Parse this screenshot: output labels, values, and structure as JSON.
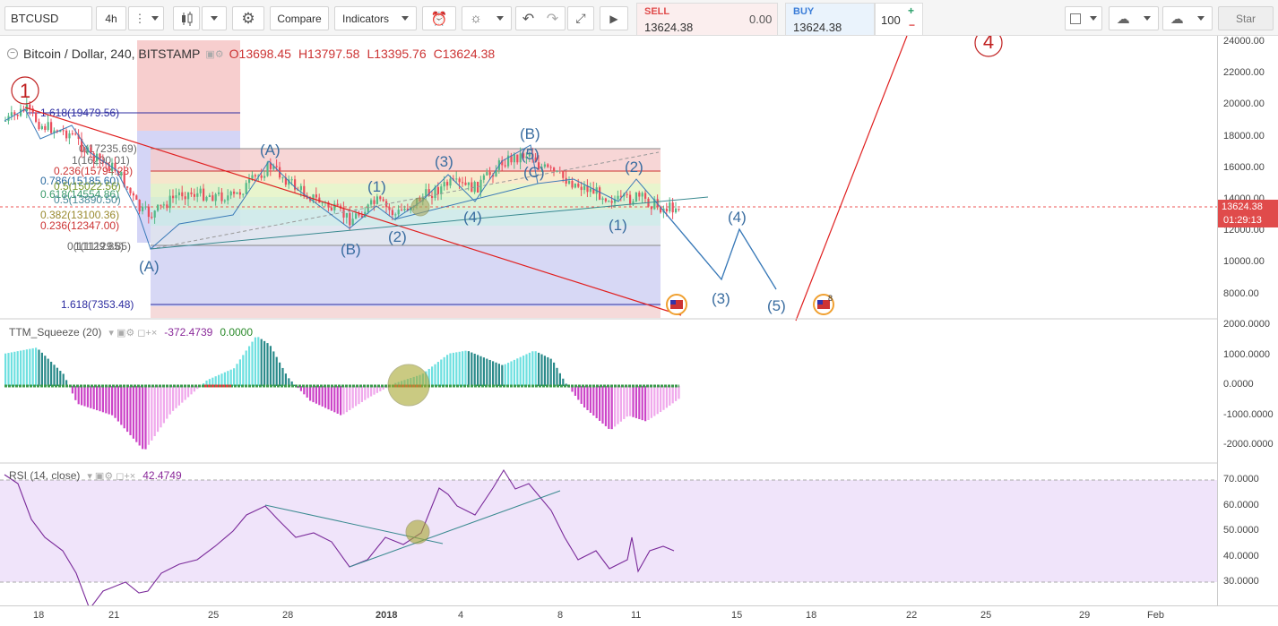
{
  "toolbar": {
    "symbol": "BTCUSD",
    "interval": "4h",
    "compare": "Compare",
    "indicators": "Indicators",
    "sell_label": "SELL",
    "sell_price": "13624.38",
    "spread": "0.00",
    "buy_label": "BUY",
    "buy_price": "13624.38",
    "quantity": "100",
    "star": "Star"
  },
  "legend": {
    "title": "Bitcoin / Dollar, 240, BITSTAMP",
    "open": "O13698.45",
    "high": "H13797.58",
    "low": "L13395.76",
    "close": "C13624.38"
  },
  "ttm": {
    "name": "TTM_Squeeze (20)",
    "v1": "-372.4739",
    "v2": "0.0000"
  },
  "rsi": {
    "name": "RSI (14, close)",
    "v1": "42.4749"
  },
  "price_axis": [
    "24000.00",
    "22000.00",
    "20000.00",
    "18000.00",
    "16000.00",
    "14000.00",
    "12000.00",
    "10000.00",
    "8000.00"
  ],
  "last_price": "13624.38",
  "countdown": "01:29:13",
  "ttm_axis": [
    "2000.0000",
    "1000.0000",
    "0.0000",
    "-1000.0000",
    "-2000.0000"
  ],
  "rsi_axis": [
    "70.0000",
    "60.0000",
    "50.0000",
    "40.0000",
    "30.0000"
  ],
  "date_axis": [
    "18",
    "21",
    "25",
    "28",
    "2018",
    "4",
    "8",
    "11",
    "15",
    "18",
    "22",
    "25",
    "29",
    "Feb"
  ],
  "fib_labels": [
    "1.618(19479.56)",
    "0(17235.69)",
    "1(16290.01)",
    "0.236(15794.28)",
    "0.786(15185.60)",
    "0.5(15022.56)",
    "0.618(14554.86)",
    "0.5(13890.50)",
    "0.382(13100.36)",
    "0.236(12347.00)",
    "0(11129.85)",
    "1(11129.85)",
    "1.618(7353.48)"
  ],
  "wave_labels": {
    "c1": "1",
    "c4": "4",
    "a1": "(A)",
    "a2": "(A)",
    "b1": "(B)",
    "b2": "(B)",
    "cC": "(C)",
    "w1": "(1)",
    "w2": "(2)",
    "w3": "(3)",
    "w4": "(4)",
    "w1b": "(1)",
    "w2b": "(2)",
    "w3b": "(3)",
    "w4b": "(4)",
    "w5b": "(5)",
    "w5top": "(5)"
  },
  "colors": {
    "up": "#53b987",
    "down": "#eb4d5c",
    "price_line": "#e55",
    "trend_red": "#e02020",
    "wave_blue": "#3a7ab8",
    "ttm_pos": "#7de3e3",
    "ttm_neg": "#e59be0",
    "rsi_line": "#7a2a9a",
    "rsi_band": "#f0e4fa"
  },
  "chart_data": {
    "type": "line",
    "price_ylim": [
      7000,
      24500
    ],
    "last_close": 13624.38,
    "trendline_from": 19700,
    "trendline_to": 7400,
    "target_5": 7000,
    "rsi_ylim": [
      25,
      75
    ],
    "rsi_last": 42.4749,
    "ttm_last": -372.4739
  }
}
